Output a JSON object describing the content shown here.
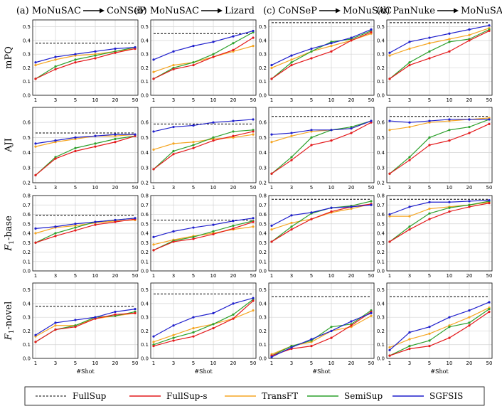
{
  "chart_data": {
    "type": "line",
    "x": [
      "1",
      "3",
      "5",
      "10",
      "20",
      "50"
    ],
    "xlabel": "#Shot",
    "columns": [
      {
        "title_from": "(a) MoNuSAC",
        "title_to": "CoNSeP"
      },
      {
        "title_from": "(b) MoNuSAC",
        "title_to": "Lizard"
      },
      {
        "title_from": "(c) CoNSeP",
        "title_to": "MoNuSAC"
      },
      {
        "title_from": "(d) PanNuke",
        "title_to": "MoNuSAC"
      }
    ],
    "rows": [
      {
        "label_main": "mPQ",
        "label_sub": "",
        "label_rest": "",
        "ylim": [
          0.0,
          0.55
        ],
        "yticks": [
          "0.0",
          "0.1",
          "0.2",
          "0.3",
          "0.4",
          "0.5"
        ]
      },
      {
        "label_main": "AJI",
        "label_sub": "",
        "label_rest": "",
        "ylim": [
          0.2,
          0.7
        ],
        "yticks": [
          "0.2",
          "0.3",
          "0.4",
          "0.5",
          "0.6"
        ]
      },
      {
        "label_main": "F",
        "label_sub": "1",
        "label_rest": "-base",
        "ylim": [
          0.0,
          0.8
        ],
        "yticks": [
          "0.0",
          "0.1",
          "0.2",
          "0.3",
          "0.4",
          "0.5",
          "0.6",
          "0.7",
          "0.8"
        ]
      },
      {
        "label_main": "F",
        "label_sub": "1",
        "label_rest": "-novel",
        "ylim": [
          0.0,
          0.55
        ],
        "yticks": [
          "0.0",
          "0.1",
          "0.2",
          "0.3",
          "0.4",
          "0.5"
        ]
      }
    ],
    "series_styles": [
      {
        "name": "FullSup",
        "color": "#000000",
        "dashed": true
      },
      {
        "name": "FullSup-s",
        "color": "#e41a1c",
        "dashed": false
      },
      {
        "name": "TransFT",
        "color": "#f5a623",
        "dashed": false
      },
      {
        "name": "SemiSup",
        "color": "#2ca02c",
        "dashed": false
      },
      {
        "name": "SGFSIS",
        "color": "#1f1fcc",
        "dashed": false
      }
    ],
    "panels": [
      {
        "row": 0,
        "col": 0,
        "fullsup": 0.38,
        "series": {
          "FullSup-s": [
            0.12,
            0.19,
            0.24,
            0.27,
            0.31,
            0.34
          ],
          "TransFT": [
            0.22,
            0.26,
            0.29,
            0.3,
            0.32,
            0.34
          ],
          "SemiSup": [
            0.12,
            0.21,
            0.26,
            0.29,
            0.32,
            0.35
          ],
          "SGFSIS": [
            0.24,
            0.28,
            0.3,
            0.32,
            0.34,
            0.35
          ]
        }
      },
      {
        "row": 0,
        "col": 1,
        "fullsup": 0.45,
        "series": {
          "FullSup-s": [
            0.12,
            0.19,
            0.22,
            0.28,
            0.33,
            0.42
          ],
          "TransFT": [
            0.17,
            0.22,
            0.24,
            0.28,
            0.32,
            0.36
          ],
          "SemiSup": [
            0.12,
            0.2,
            0.24,
            0.3,
            0.38,
            0.46
          ],
          "SGFSIS": [
            0.26,
            0.32,
            0.36,
            0.39,
            0.43,
            0.47
          ]
        }
      },
      {
        "row": 0,
        "col": 2,
        "fullsup": 0.53,
        "series": {
          "FullSup-s": [
            0.12,
            0.22,
            0.27,
            0.32,
            0.4,
            0.46
          ],
          "TransFT": [
            0.2,
            0.26,
            0.32,
            0.36,
            0.4,
            0.45
          ],
          "SemiSup": [
            0.12,
            0.24,
            0.32,
            0.39,
            0.41,
            0.47
          ],
          "SGFSIS": [
            0.22,
            0.29,
            0.34,
            0.38,
            0.42,
            0.48
          ]
        }
      },
      {
        "row": 0,
        "col": 3,
        "fullsup": 0.53,
        "series": {
          "FullSup-s": [
            0.12,
            0.22,
            0.27,
            0.32,
            0.4,
            0.47
          ],
          "TransFT": [
            0.29,
            0.34,
            0.38,
            0.41,
            0.44,
            0.49
          ],
          "SemiSup": [
            0.12,
            0.24,
            0.32,
            0.39,
            0.41,
            0.48
          ],
          "SGFSIS": [
            0.31,
            0.39,
            0.42,
            0.45,
            0.48,
            0.51
          ]
        }
      },
      {
        "row": 1,
        "col": 0,
        "fullsup": 0.53,
        "series": {
          "FullSup-s": [
            0.25,
            0.36,
            0.41,
            0.44,
            0.47,
            0.51
          ],
          "TransFT": [
            0.44,
            0.47,
            0.49,
            0.51,
            0.51,
            0.52
          ],
          "SemiSup": [
            0.25,
            0.37,
            0.43,
            0.46,
            0.49,
            0.51
          ],
          "SGFSIS": [
            0.46,
            0.48,
            0.5,
            0.51,
            0.52,
            0.52
          ]
        }
      },
      {
        "row": 1,
        "col": 1,
        "fullsup": 0.59,
        "series": {
          "FullSup-s": [
            0.29,
            0.39,
            0.43,
            0.48,
            0.51,
            0.54
          ],
          "TransFT": [
            0.42,
            0.46,
            0.47,
            0.49,
            0.5,
            0.52
          ],
          "SemiSup": [
            0.29,
            0.41,
            0.45,
            0.5,
            0.54,
            0.55
          ],
          "SGFSIS": [
            0.54,
            0.57,
            0.58,
            0.6,
            0.61,
            0.62
          ]
        }
      },
      {
        "row": 1,
        "col": 2,
        "fullsup": 0.64,
        "series": {
          "FullSup-s": [
            0.26,
            0.35,
            0.45,
            0.48,
            0.53,
            0.6
          ],
          "TransFT": [
            0.47,
            0.51,
            0.54,
            0.55,
            0.56,
            0.61
          ],
          "SemiSup": [
            0.26,
            0.37,
            0.5,
            0.55,
            0.57,
            0.61
          ],
          "SGFSIS": [
            0.52,
            0.53,
            0.55,
            0.55,
            0.56,
            0.61
          ]
        }
      },
      {
        "row": 1,
        "col": 3,
        "fullsup": 0.64,
        "series": {
          "FullSup-s": [
            0.26,
            0.35,
            0.45,
            0.48,
            0.53,
            0.59
          ],
          "TransFT": [
            0.55,
            0.57,
            0.6,
            0.61,
            0.62,
            0.63
          ],
          "SemiSup": [
            0.26,
            0.37,
            0.5,
            0.55,
            0.57,
            0.62
          ],
          "SGFSIS": [
            0.61,
            0.6,
            0.61,
            0.62,
            0.62,
            0.62
          ]
        }
      },
      {
        "row": 2,
        "col": 0,
        "fullsup": 0.59,
        "series": {
          "FullSup-s": [
            0.3,
            0.37,
            0.43,
            0.49,
            0.52,
            0.55
          ],
          "TransFT": [
            0.4,
            0.46,
            0.48,
            0.51,
            0.53,
            0.54
          ],
          "SemiSup": [
            0.3,
            0.4,
            0.46,
            0.52,
            0.54,
            0.56
          ],
          "SGFSIS": [
            0.45,
            0.47,
            0.5,
            0.52,
            0.54,
            0.56
          ]
        }
      },
      {
        "row": 2,
        "col": 1,
        "fullsup": 0.54,
        "series": {
          "FullSup-s": [
            0.22,
            0.31,
            0.34,
            0.39,
            0.45,
            0.52
          ],
          "TransFT": [
            0.28,
            0.33,
            0.37,
            0.4,
            0.44,
            0.47
          ],
          "SemiSup": [
            0.22,
            0.32,
            0.36,
            0.42,
            0.48,
            0.53
          ],
          "SGFSIS": [
            0.36,
            0.42,
            0.46,
            0.49,
            0.53,
            0.56
          ]
        }
      },
      {
        "row": 2,
        "col": 2,
        "fullsup": 0.76,
        "series": {
          "FullSup-s": [
            0.31,
            0.44,
            0.55,
            0.63,
            0.68,
            0.71
          ],
          "TransFT": [
            0.44,
            0.51,
            0.55,
            0.62,
            0.66,
            0.71
          ],
          "SemiSup": [
            0.31,
            0.47,
            0.61,
            0.67,
            0.69,
            0.74
          ],
          "SGFSIS": [
            0.48,
            0.59,
            0.62,
            0.67,
            0.68,
            0.7
          ]
        }
      },
      {
        "row": 2,
        "col": 3,
        "fullsup": 0.76,
        "series": {
          "FullSup-s": [
            0.31,
            0.44,
            0.55,
            0.63,
            0.68,
            0.72
          ],
          "TransFT": [
            0.58,
            0.58,
            0.66,
            0.68,
            0.7,
            0.73
          ],
          "SemiSup": [
            0.31,
            0.47,
            0.61,
            0.67,
            0.7,
            0.74
          ],
          "SGFSIS": [
            0.6,
            0.68,
            0.73,
            0.73,
            0.74,
            0.75
          ]
        }
      },
      {
        "row": 3,
        "col": 0,
        "fullsup": 0.38,
        "series": {
          "FullSup-s": [
            0.12,
            0.21,
            0.23,
            0.29,
            0.32,
            0.33
          ],
          "TransFT": [
            0.16,
            0.24,
            0.24,
            0.29,
            0.31,
            0.33
          ],
          "SemiSup": [
            0.12,
            0.21,
            0.24,
            0.3,
            0.31,
            0.34
          ],
          "SGFSIS": [
            0.17,
            0.26,
            0.28,
            0.3,
            0.34,
            0.36
          ]
        }
      },
      {
        "row": 3,
        "col": 1,
        "fullsup": 0.47,
        "series": {
          "FullSup-s": [
            0.09,
            0.13,
            0.16,
            0.22,
            0.29,
            0.42
          ],
          "TransFT": [
            0.12,
            0.17,
            0.22,
            0.25,
            0.29,
            0.35
          ],
          "SemiSup": [
            0.1,
            0.15,
            0.19,
            0.25,
            0.32,
            0.43
          ],
          "SGFSIS": [
            0.16,
            0.24,
            0.3,
            0.33,
            0.4,
            0.44
          ]
        }
      },
      {
        "row": 3,
        "col": 2,
        "fullsup": 0.45,
        "series": {
          "FullSup-s": [
            0.02,
            0.07,
            0.09,
            0.15,
            0.24,
            0.34
          ],
          "TransFT": [
            0.03,
            0.09,
            0.12,
            0.2,
            0.23,
            0.31
          ],
          "SemiSup": [
            0.02,
            0.09,
            0.13,
            0.23,
            0.25,
            0.35
          ],
          "SGFSIS": [
            0.01,
            0.08,
            0.14,
            0.2,
            0.27,
            0.33
          ]
        }
      },
      {
        "row": 3,
        "col": 3,
        "fullsup": 0.45,
        "series": {
          "FullSup-s": [
            0.02,
            0.07,
            0.09,
            0.15,
            0.24,
            0.34
          ],
          "TransFT": [
            0.08,
            0.14,
            0.18,
            0.24,
            0.3,
            0.37
          ],
          "SemiSup": [
            0.02,
            0.09,
            0.13,
            0.23,
            0.26,
            0.36
          ],
          "SGFSIS": [
            0.06,
            0.19,
            0.23,
            0.3,
            0.35,
            0.41
          ]
        }
      }
    ],
    "legend": [
      "FullSup",
      "FullSup-s",
      "TransFT",
      "SemiSup",
      "SGFSIS"
    ]
  }
}
